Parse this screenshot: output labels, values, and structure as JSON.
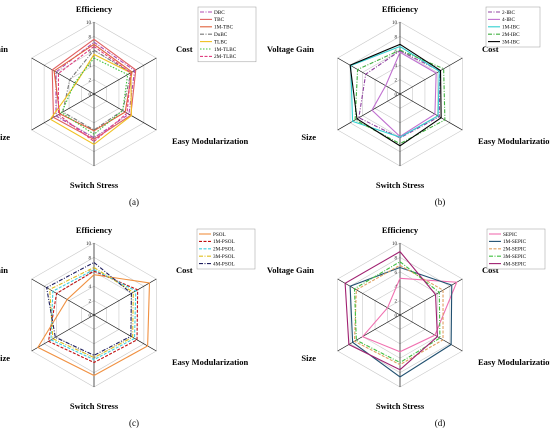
{
  "chart_data": [
    {
      "type": "radar",
      "caption": "(a)",
      "axes": [
        "Efficiency",
        "Cost",
        "Easy Modularization",
        "Switch Stress",
        "Size",
        "Voltage Gain"
      ],
      "rlim": [
        0,
        10
      ],
      "ticks": [
        "0",
        "2",
        "4",
        "6",
        "8",
        "10"
      ],
      "grid": true,
      "legend_position": "top-right",
      "series": [
        {
          "name": "DBC",
          "color": "#b04ab0",
          "dash": "4,1.5,1,1.5",
          "values": [
            7.2,
            6.5,
            5.6,
            6.1,
            6.1,
            6.1
          ]
        },
        {
          "name": "TBC",
          "color": "#e06060",
          "dash": "",
          "values": [
            7.6,
            6.7,
            5.9,
            6.3,
            6.5,
            6.7
          ]
        },
        {
          "name": "1M-TBC",
          "color": "#e0603a",
          "dash": "",
          "values": [
            6.9,
            6.1,
            5.0,
            5.1,
            5.5,
            6.4
          ]
        },
        {
          "name": "DuBC",
          "color": "#777777",
          "dash": "4,1.5,1,1.5",
          "values": [
            6.1,
            5.9,
            4.6,
            5.0,
            5.0,
            3.9
          ]
        },
        {
          "name": "TLBC",
          "color": "#f0c020",
          "dash": "",
          "values": [
            5.5,
            5.9,
            6.0,
            7.0,
            7.0,
            2.9
          ]
        },
        {
          "name": "1M-TLBC",
          "color": "#40c040",
          "dash": "1.5,1.5",
          "values": [
            5.0,
            5.4,
            4.6,
            5.6,
            5.2,
            3.1
          ]
        },
        {
          "name": "2M-TLBC",
          "color": "#e04080",
          "dash": "3,1.5",
          "values": [
            6.6,
            5.9,
            5.3,
            6.6,
            5.7,
            5.7
          ]
        }
      ]
    },
    {
      "type": "radar",
      "caption": "(b)",
      "axes": [
        "Efficiency",
        "Cost",
        "Easy Modularization",
        "Switch Stress",
        "Size",
        "Voltage Gain"
      ],
      "rlim": [
        0,
        10
      ],
      "ticks": [
        "0",
        "2",
        "4",
        "6",
        "8",
        "10"
      ],
      "grid": true,
      "legend_position": "top-right",
      "series": [
        {
          "name": "2-IBC",
          "color": "#9040a0",
          "dash": "4,1.5,1,1.5",
          "values": [
            6.0,
            6.4,
            6.3,
            6.1,
            6.6,
            5.5
          ]
        },
        {
          "name": "4-IBC",
          "color": "#c070d0",
          "dash": "",
          "values": [
            5.8,
            5.8,
            5.6,
            5.9,
            4.5,
            2.3
          ]
        },
        {
          "name": "1M-IBC",
          "color": "#30d0d0",
          "dash": "",
          "values": [
            6.6,
            6.3,
            6.1,
            6.0,
            7.6,
            7.9
          ]
        },
        {
          "name": "2M-IBC",
          "color": "#40b040",
          "dash": "4,1.5,1,1.5",
          "values": [
            6.1,
            7.0,
            7.2,
            6.9,
            7.2,
            6.8
          ]
        },
        {
          "name": "3M-IBC",
          "color": "#000000",
          "dash": "",
          "values": [
            6.9,
            6.5,
            6.6,
            7.2,
            6.9,
            8.0
          ]
        }
      ]
    },
    {
      "type": "radar",
      "caption": "(c)",
      "axes": [
        "Efficiency",
        "Cost",
        "Easy Modularization",
        "Switch Stress",
        "Size",
        "Voltage Gain"
      ],
      "rlim": [
        0,
        10
      ],
      "ticks": [
        "0",
        "2",
        "4",
        "6",
        "8",
        "10"
      ],
      "grid": true,
      "legend_position": "top-right",
      "series": [
        {
          "name": "PSOL",
          "color": "#f09040",
          "dash": "",
          "values": [
            5.6,
            8.9,
            8.6,
            8.4,
            9.0,
            4.3
          ]
        },
        {
          "name": "1M-PSOL",
          "color": "#c01010",
          "dash": "3,1.5",
          "values": [
            6.1,
            7.0,
            6.9,
            6.6,
            7.3,
            6.0
          ]
        },
        {
          "name": "2M-PSOL",
          "color": "#40d0e0",
          "dash": "3,1.5",
          "values": [
            6.3,
            6.7,
            6.5,
            6.2,
            6.9,
            6.6
          ]
        },
        {
          "name": "3M-PSOL",
          "color": "#e0c020",
          "dash": "4,1.5,1,1.5",
          "values": [
            6.6,
            6.3,
            6.2,
            5.9,
            6.6,
            7.1
          ]
        },
        {
          "name": "4M-PSOL",
          "color": "#202060",
          "dash": "4,1.5,1,1.5",
          "values": [
            7.3,
            6.0,
            5.9,
            5.6,
            6.2,
            7.6
          ]
        }
      ]
    },
    {
      "type": "radar",
      "caption": "(d)",
      "axes": [
        "Efficiency",
        "Cost",
        "Easy Modularization",
        "Switch Stress",
        "Size",
        "Voltage Gain"
      ],
      "rlim": [
        0,
        10
      ],
      "ticks": [
        "0",
        "2",
        "4",
        "6",
        "8",
        "10"
      ],
      "grid": true,
      "legend_position": "top-right",
      "series": [
        {
          "name": "SEPIC",
          "color": "#f070b0",
          "dash": "",
          "values": [
            5.1,
            9.1,
            5.6,
            5.1,
            6.0,
            2.0
          ]
        },
        {
          "name": "1M-SEPIC",
          "color": "#205070",
          "dash": "",
          "values": [
            6.6,
            8.3,
            8.2,
            8.6,
            7.6,
            8.0
          ]
        },
        {
          "name": "2M-SEPIC",
          "color": "#e0a060",
          "dash": "3,1.5",
          "values": [
            6.9,
            6.9,
            6.9,
            6.9,
            7.3,
            7.0
          ]
        },
        {
          "name": "3M-SEPIC",
          "color": "#40c040",
          "dash": "4,1.5,1,1.5",
          "values": [
            7.4,
            6.3,
            6.4,
            6.6,
            7.0,
            7.3
          ]
        },
        {
          "name": "4M-SEPIC",
          "color": "#a02070",
          "dash": "",
          "values": [
            8.8,
            5.7,
            6.0,
            7.6,
            8.2,
            8.8
          ]
        }
      ]
    }
  ]
}
